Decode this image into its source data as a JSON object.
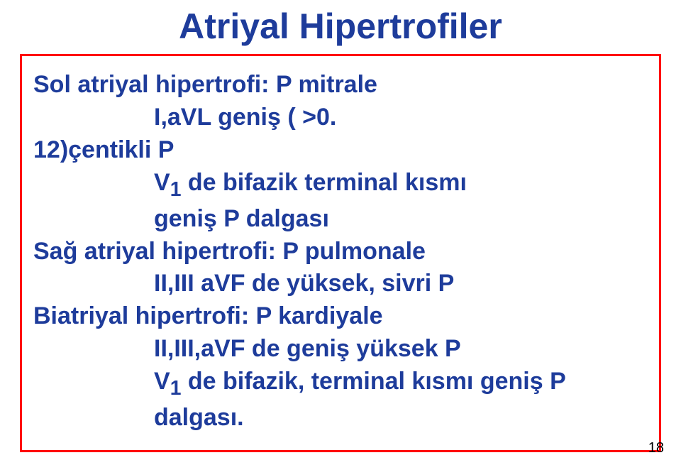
{
  "title": {
    "text": "Atriyal Hipertrofiler",
    "color": "#1e3c9b",
    "fontsize": 50
  },
  "box": {
    "border_color": "#ff0000",
    "content_color": "#1e3c9b",
    "fontsize": 34,
    "lines": {
      "l1": "Sol atriyal hipertrofi: P mitrale",
      "l2a": "I,aVL geniş ( >0.",
      "l2b": "12)çentikli P",
      "l3": "V",
      "l3sub": "1",
      "l3rest": " de bifazik terminal kısmı",
      "l4": "geniş P dalgası",
      "l5": "Sağ atriyal hipertrofi: P pulmonale",
      "l6": "II,III aVF de yüksek, sivri P",
      "l7": "Biatriyal hipertrofi: P kardiyale",
      "l8": "II,III,aVF de geniş yüksek P",
      "l9a": "V",
      "l9sub": "1",
      "l9b": " de  bifazik, terminal kısmı geniş P",
      "l10": "dalgası."
    }
  },
  "pagenum": {
    "text": "18",
    "color": "#000000"
  }
}
